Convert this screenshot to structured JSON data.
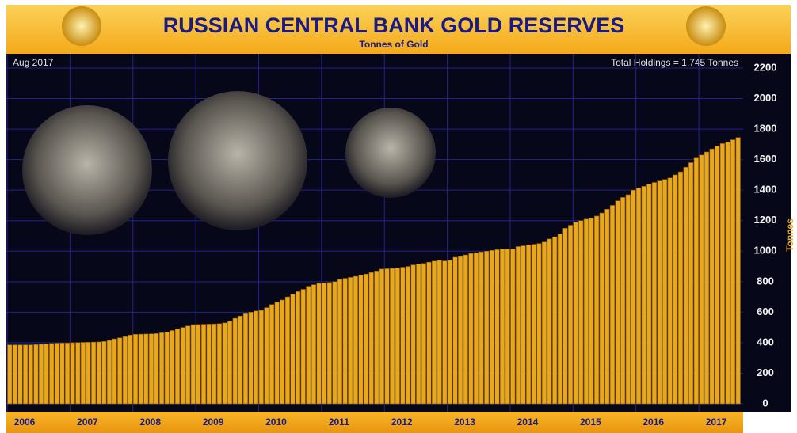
{
  "chart_data": {
    "type": "bar",
    "title": "RUSSIAN CENTRAL BANK GOLD RESERVES",
    "subtitle": "Tonnes of Gold",
    "annotations": [
      "Aug 2017",
      "Total Holdings = 1,745 Tonnes"
    ],
    "y_label": "Tonnes",
    "categories": [
      "2006",
      null,
      null,
      null,
      null,
      null,
      null,
      null,
      null,
      null,
      null,
      null,
      "2007",
      null,
      null,
      null,
      null,
      null,
      null,
      null,
      null,
      null,
      null,
      null,
      "2008",
      null,
      null,
      null,
      null,
      null,
      null,
      null,
      null,
      null,
      null,
      null,
      "2009",
      null,
      null,
      null,
      null,
      null,
      null,
      null,
      null,
      null,
      null,
      null,
      "2010",
      null,
      null,
      null,
      null,
      null,
      null,
      null,
      null,
      null,
      null,
      null,
      "2011",
      null,
      null,
      null,
      null,
      null,
      null,
      null,
      null,
      null,
      null,
      null,
      "2012",
      null,
      null,
      null,
      null,
      null,
      null,
      null,
      null,
      null,
      null,
      null,
      "2013",
      null,
      null,
      null,
      null,
      null,
      null,
      null,
      null,
      null,
      null,
      null,
      "2014",
      null,
      null,
      null,
      null,
      null,
      null,
      null,
      null,
      null,
      null,
      null,
      "2015",
      null,
      null,
      null,
      null,
      null,
      null,
      null,
      null,
      null,
      null,
      null,
      "2016",
      null,
      null,
      null,
      null,
      null,
      null,
      null,
      null,
      null,
      null,
      null,
      "2017",
      null,
      null,
      null,
      null,
      null,
      null,
      null
    ],
    "values": [
      386,
      386,
      386,
      386,
      386,
      388,
      390,
      392,
      395,
      397,
      398,
      398,
      400,
      401,
      402,
      403,
      404,
      405,
      408,
      415,
      425,
      432,
      440,
      450,
      455,
      456,
      457,
      458,
      460,
      465,
      470,
      480,
      490,
      500,
      510,
      519,
      520,
      521,
      522,
      523,
      525,
      530,
      540,
      560,
      575,
      590,
      600,
      608,
      612,
      630,
      650,
      665,
      680,
      700,
      718,
      735,
      750,
      770,
      780,
      789,
      792,
      795,
      800,
      815,
      822,
      828,
      835,
      842,
      850,
      860,
      870,
      883,
      885,
      887,
      890,
      895,
      900,
      910,
      915,
      920,
      928,
      935,
      940,
      936,
      940,
      960,
      965,
      975,
      985,
      990,
      995,
      1000,
      1005,
      1010,
      1015,
      1015,
      1015,
      1030,
      1035,
      1040,
      1045,
      1050,
      1060,
      1080,
      1094,
      1112,
      1150,
      1170,
      1190,
      1200,
      1210,
      1215,
      1230,
      1250,
      1275,
      1300,
      1330,
      1352,
      1370,
      1400,
      1415,
      1425,
      1440,
      1450,
      1460,
      1470,
      1480,
      1500,
      1520,
      1550,
      1580,
      1615,
      1630,
      1650,
      1670,
      1690,
      1705,
      1715,
      1730,
      1745
    ],
    "color": "#e9a81b",
    "ylim": [
      0,
      2200
    ],
    "yticks": [
      0,
      200,
      400,
      600,
      800,
      1000,
      1200,
      1400,
      1600,
      1800,
      2000,
      2200
    ],
    "grid": true
  }
}
